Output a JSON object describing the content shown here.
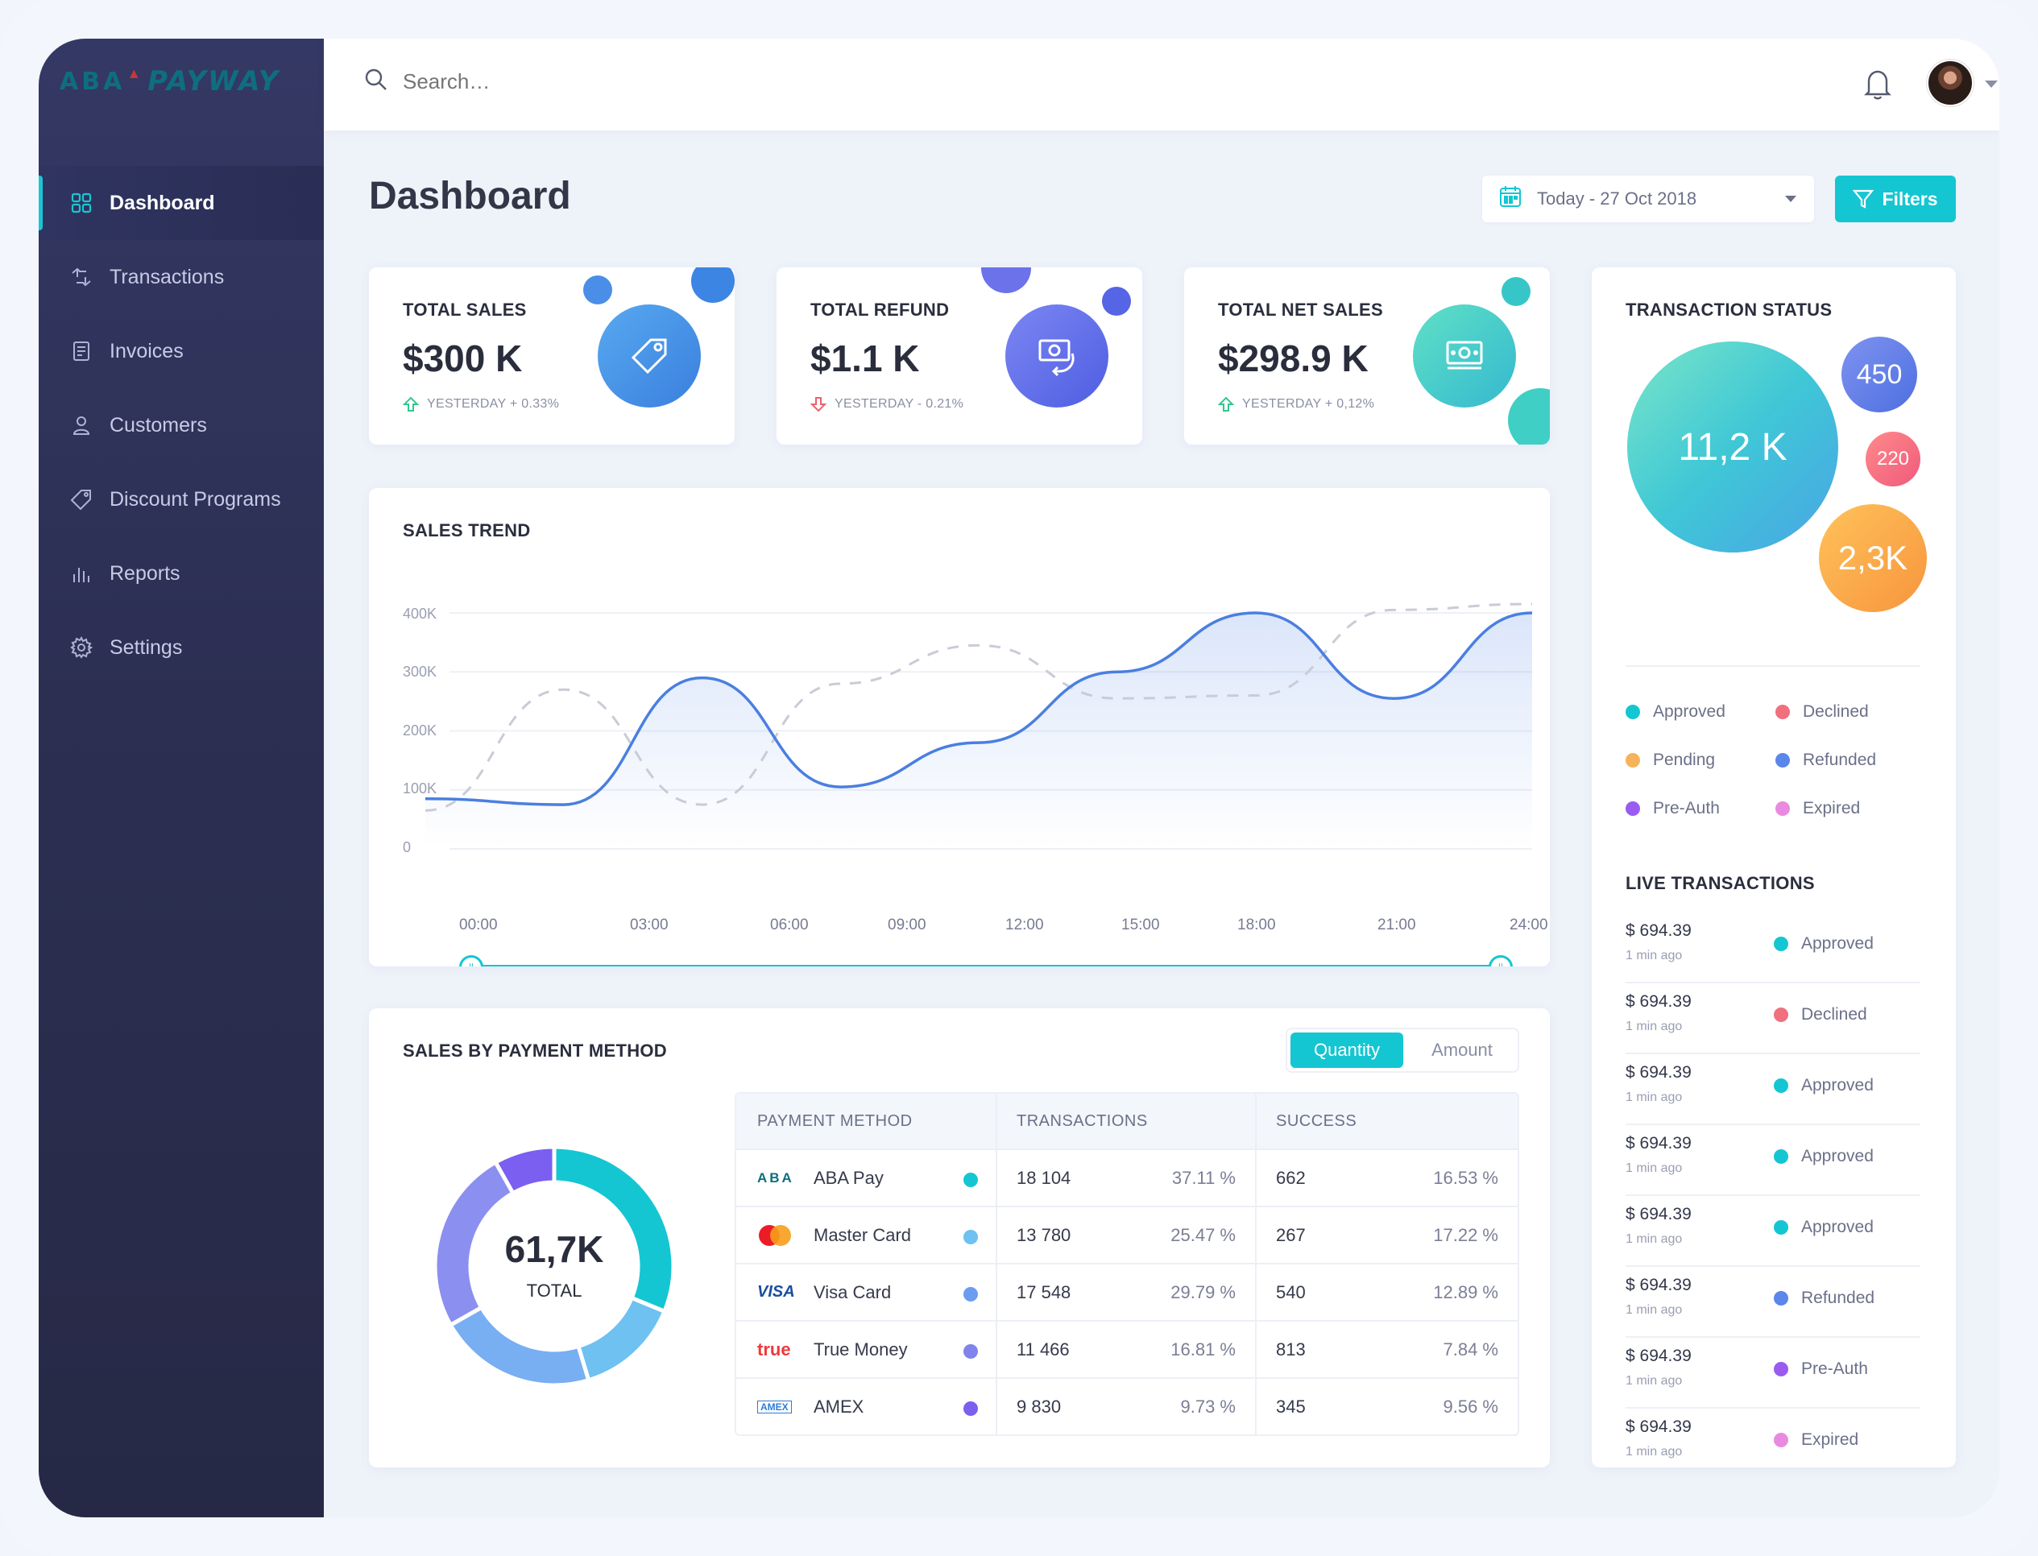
{
  "brand": {
    "logo_aba": "ABA",
    "logo_payway": "PAYWAY"
  },
  "sidebar": {
    "items": [
      {
        "label": "Dashboard",
        "icon": "grid-icon",
        "active": true
      },
      {
        "label": "Transactions",
        "icon": "transfer-icon"
      },
      {
        "label": "Invoices",
        "icon": "invoice-icon"
      },
      {
        "label": "Customers",
        "icon": "user-icon"
      },
      {
        "label": "Discount Programs",
        "icon": "tag-icon"
      },
      {
        "label": "Reports",
        "icon": "bar-chart-icon"
      },
      {
        "label": "Settings",
        "icon": "gear-icon"
      }
    ]
  },
  "topbar": {
    "search_placeholder": "Search…",
    "bell_icon": "bell-icon",
    "avatar_icon": "avatar"
  },
  "header": {
    "title": "Dashboard",
    "date_range": "Today - 27 Oct 2018",
    "filters_label": "Filters"
  },
  "stats": [
    {
      "label": "TOTAL SALES",
      "value": "$300 K",
      "trend": "YESTERDAY + 0.33%",
      "direction": "up",
      "icon": "price-tag-icon",
      "color": "#3e8fe0"
    },
    {
      "label": "TOTAL REFUND",
      "value": "$1.1 K",
      "trend": "YESTERDAY - 0.21%",
      "direction": "down",
      "icon": "refund-icon",
      "color": "#5b6bea"
    },
    {
      "label": "TOTAL NET SALES",
      "value": "$298.9 K",
      "trend": "YESTERDAY + 0,12%",
      "direction": "up",
      "icon": "cash-icon",
      "color": "#3ec9c4"
    }
  ],
  "sales_trend": {
    "title": "SALES TREND"
  },
  "chart_data": {
    "type": "line",
    "title": "SALES TREND",
    "x": [
      "00:00",
      "03:00",
      "06:00",
      "09:00",
      "12:00",
      "15:00",
      "18:00",
      "21:00",
      "24:00"
    ],
    "y_ticks": [
      "400K",
      "300K",
      "200K",
      "100K",
      "0"
    ],
    "ylim": [
      0,
      400000
    ],
    "grid": true,
    "series": [
      {
        "style": "solid",
        "color": "#4a7fe0",
        "values": [
          85000,
          75000,
          290000,
          105000,
          180000,
          300000,
          400000,
          255000,
          400000
        ]
      },
      {
        "style": "dashed",
        "color": "#c9ccd6",
        "values": [
          65000,
          270000,
          75000,
          280000,
          345000,
          255000,
          260000,
          405000,
          415000
        ]
      }
    ],
    "range_slider": {
      "from": "00:00",
      "to": "24:00"
    }
  },
  "payment": {
    "title": "SALES BY PAYMENT METHOD",
    "toggle": [
      "Quantity",
      "Amount"
    ],
    "donut_total": "61,7K",
    "donut_label": "TOTAL",
    "headers": [
      "PAYMENT METHOD",
      "TRANSACTIONS",
      "SUCCESS"
    ],
    "rows": [
      {
        "logo": "ABA",
        "name": "ABA Pay",
        "color": "#14c6d2",
        "transactions": "18 104",
        "transactions_pct": "37.11 %",
        "success": "662",
        "success_pct": "16.53 %"
      },
      {
        "logo": "mastercard-icon",
        "name": "Master Card",
        "color": "#6ec1f0",
        "transactions": "13 780",
        "transactions_pct": "25.47 %",
        "success": "267",
        "success_pct": "17.22 %"
      },
      {
        "logo": "VISA",
        "name": "Visa Card",
        "color": "#6c9cf0",
        "transactions": "17 548",
        "transactions_pct": "29.79 %",
        "success": "540",
        "success_pct": "12.89 %"
      },
      {
        "logo": "true",
        "name": "True Money",
        "color": "#8083ec",
        "transactions": "11 466",
        "transactions_pct": "16.81 %",
        "success": "813",
        "success_pct": "7.84 %"
      },
      {
        "logo": "AMEX",
        "name": "AMEX",
        "color": "#7a5ff0",
        "transactions": "9 830",
        "transactions_pct": "9.73 %",
        "success": "345",
        "success_pct": "9.56 %"
      }
    ],
    "donut_shares": [
      37.11,
      16.81,
      25.47,
      29.79,
      9.73
    ]
  },
  "transaction_status": {
    "title": "TRANSACTION STATUS",
    "bubbles": [
      "11,2 K",
      "450",
      "220",
      "2,3K"
    ],
    "legend": [
      {
        "label": "Approved",
        "color": "#14c6d2"
      },
      {
        "label": "Declined",
        "color": "#f0707d"
      },
      {
        "label": "Pending",
        "color": "#f7b25c"
      },
      {
        "label": "Refunded",
        "color": "#5b86ea"
      },
      {
        "label": "Pre-Auth",
        "color": "#9a5cf0"
      },
      {
        "label": "Expired",
        "color": "#e98ae0"
      }
    ]
  },
  "live": {
    "title": "LIVE TRANSACTIONS",
    "rows": [
      {
        "amount": "$ 694.39",
        "time": "1 min ago",
        "status": "Approved",
        "color": "#14c6d2"
      },
      {
        "amount": "$ 694.39",
        "time": "1 min ago",
        "status": "Declined",
        "color": "#f0707d"
      },
      {
        "amount": "$ 694.39",
        "time": "1 min ago",
        "status": "Approved",
        "color": "#14c6d2"
      },
      {
        "amount": "$ 694.39",
        "time": "1 min ago",
        "status": "Approved",
        "color": "#14c6d2"
      },
      {
        "amount": "$ 694.39",
        "time": "1 min ago",
        "status": "Approved",
        "color": "#14c6d2"
      },
      {
        "amount": "$ 694.39",
        "time": "1 min ago",
        "status": "Refunded",
        "color": "#5b86ea"
      },
      {
        "amount": "$ 694.39",
        "time": "1 min ago",
        "status": "Pre-Auth",
        "color": "#9a5cf0"
      },
      {
        "amount": "$ 694.39",
        "time": "1 min ago",
        "status": "Expired",
        "color": "#e98ae0"
      }
    ]
  }
}
